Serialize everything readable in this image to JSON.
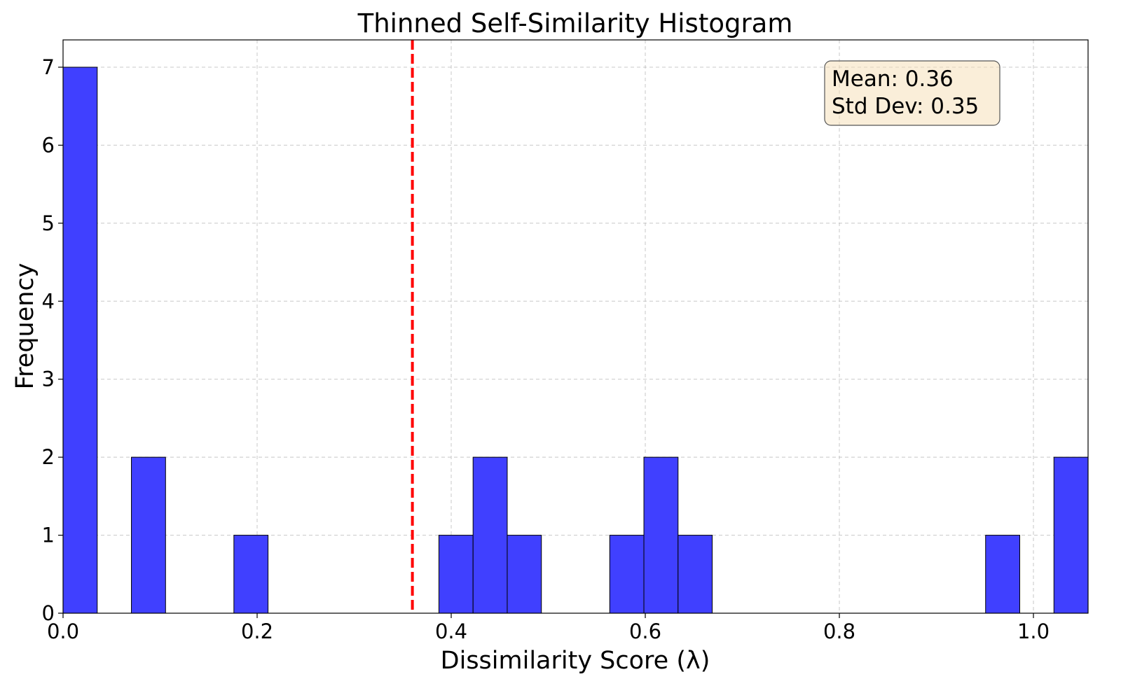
{
  "chart_data": {
    "type": "bar",
    "subtype": "histogram",
    "title": "Thinned Self-Similarity Histogram",
    "xlabel": "Dissimilarity Score (λ)",
    "ylabel": "Frequency",
    "xlim": [
      0,
      1.0563
    ],
    "ylim": [
      0,
      7.35
    ],
    "bin_width": 0.03521,
    "bins": [
      {
        "start": 0.0,
        "count": 7
      },
      {
        "start": 0.07042,
        "count": 2
      },
      {
        "start": 0.17605,
        "count": 1
      },
      {
        "start": 0.38731,
        "count": 1
      },
      {
        "start": 0.42252,
        "count": 2
      },
      {
        "start": 0.45773,
        "count": 1
      },
      {
        "start": 0.56336,
        "count": 1
      },
      {
        "start": 0.59857,
        "count": 2
      },
      {
        "start": 0.63378,
        "count": 1
      },
      {
        "start": 0.95069,
        "count": 1
      },
      {
        "start": 1.02111,
        "count": 2
      }
    ],
    "x_ticks": [
      "0.0",
      "0.2",
      "0.4",
      "0.6",
      "0.8",
      "1.0"
    ],
    "x_tick_values": [
      0,
      0.2,
      0.4,
      0.6,
      0.8,
      1.0
    ],
    "y_ticks": [
      "0",
      "1",
      "2",
      "3",
      "4",
      "5",
      "6",
      "7"
    ],
    "y_tick_values": [
      0,
      1,
      2,
      3,
      4,
      5,
      6,
      7
    ],
    "mean_line": {
      "value": 0.36,
      "color": "#ff0000",
      "style": "dashed"
    },
    "stats_box": {
      "mean": "Mean: 0.36",
      "std": "Std Dev: 0.35",
      "placement": "top-right"
    },
    "grid": true,
    "bar_color": "#4040ff",
    "bar_edge_color": "#000000"
  }
}
